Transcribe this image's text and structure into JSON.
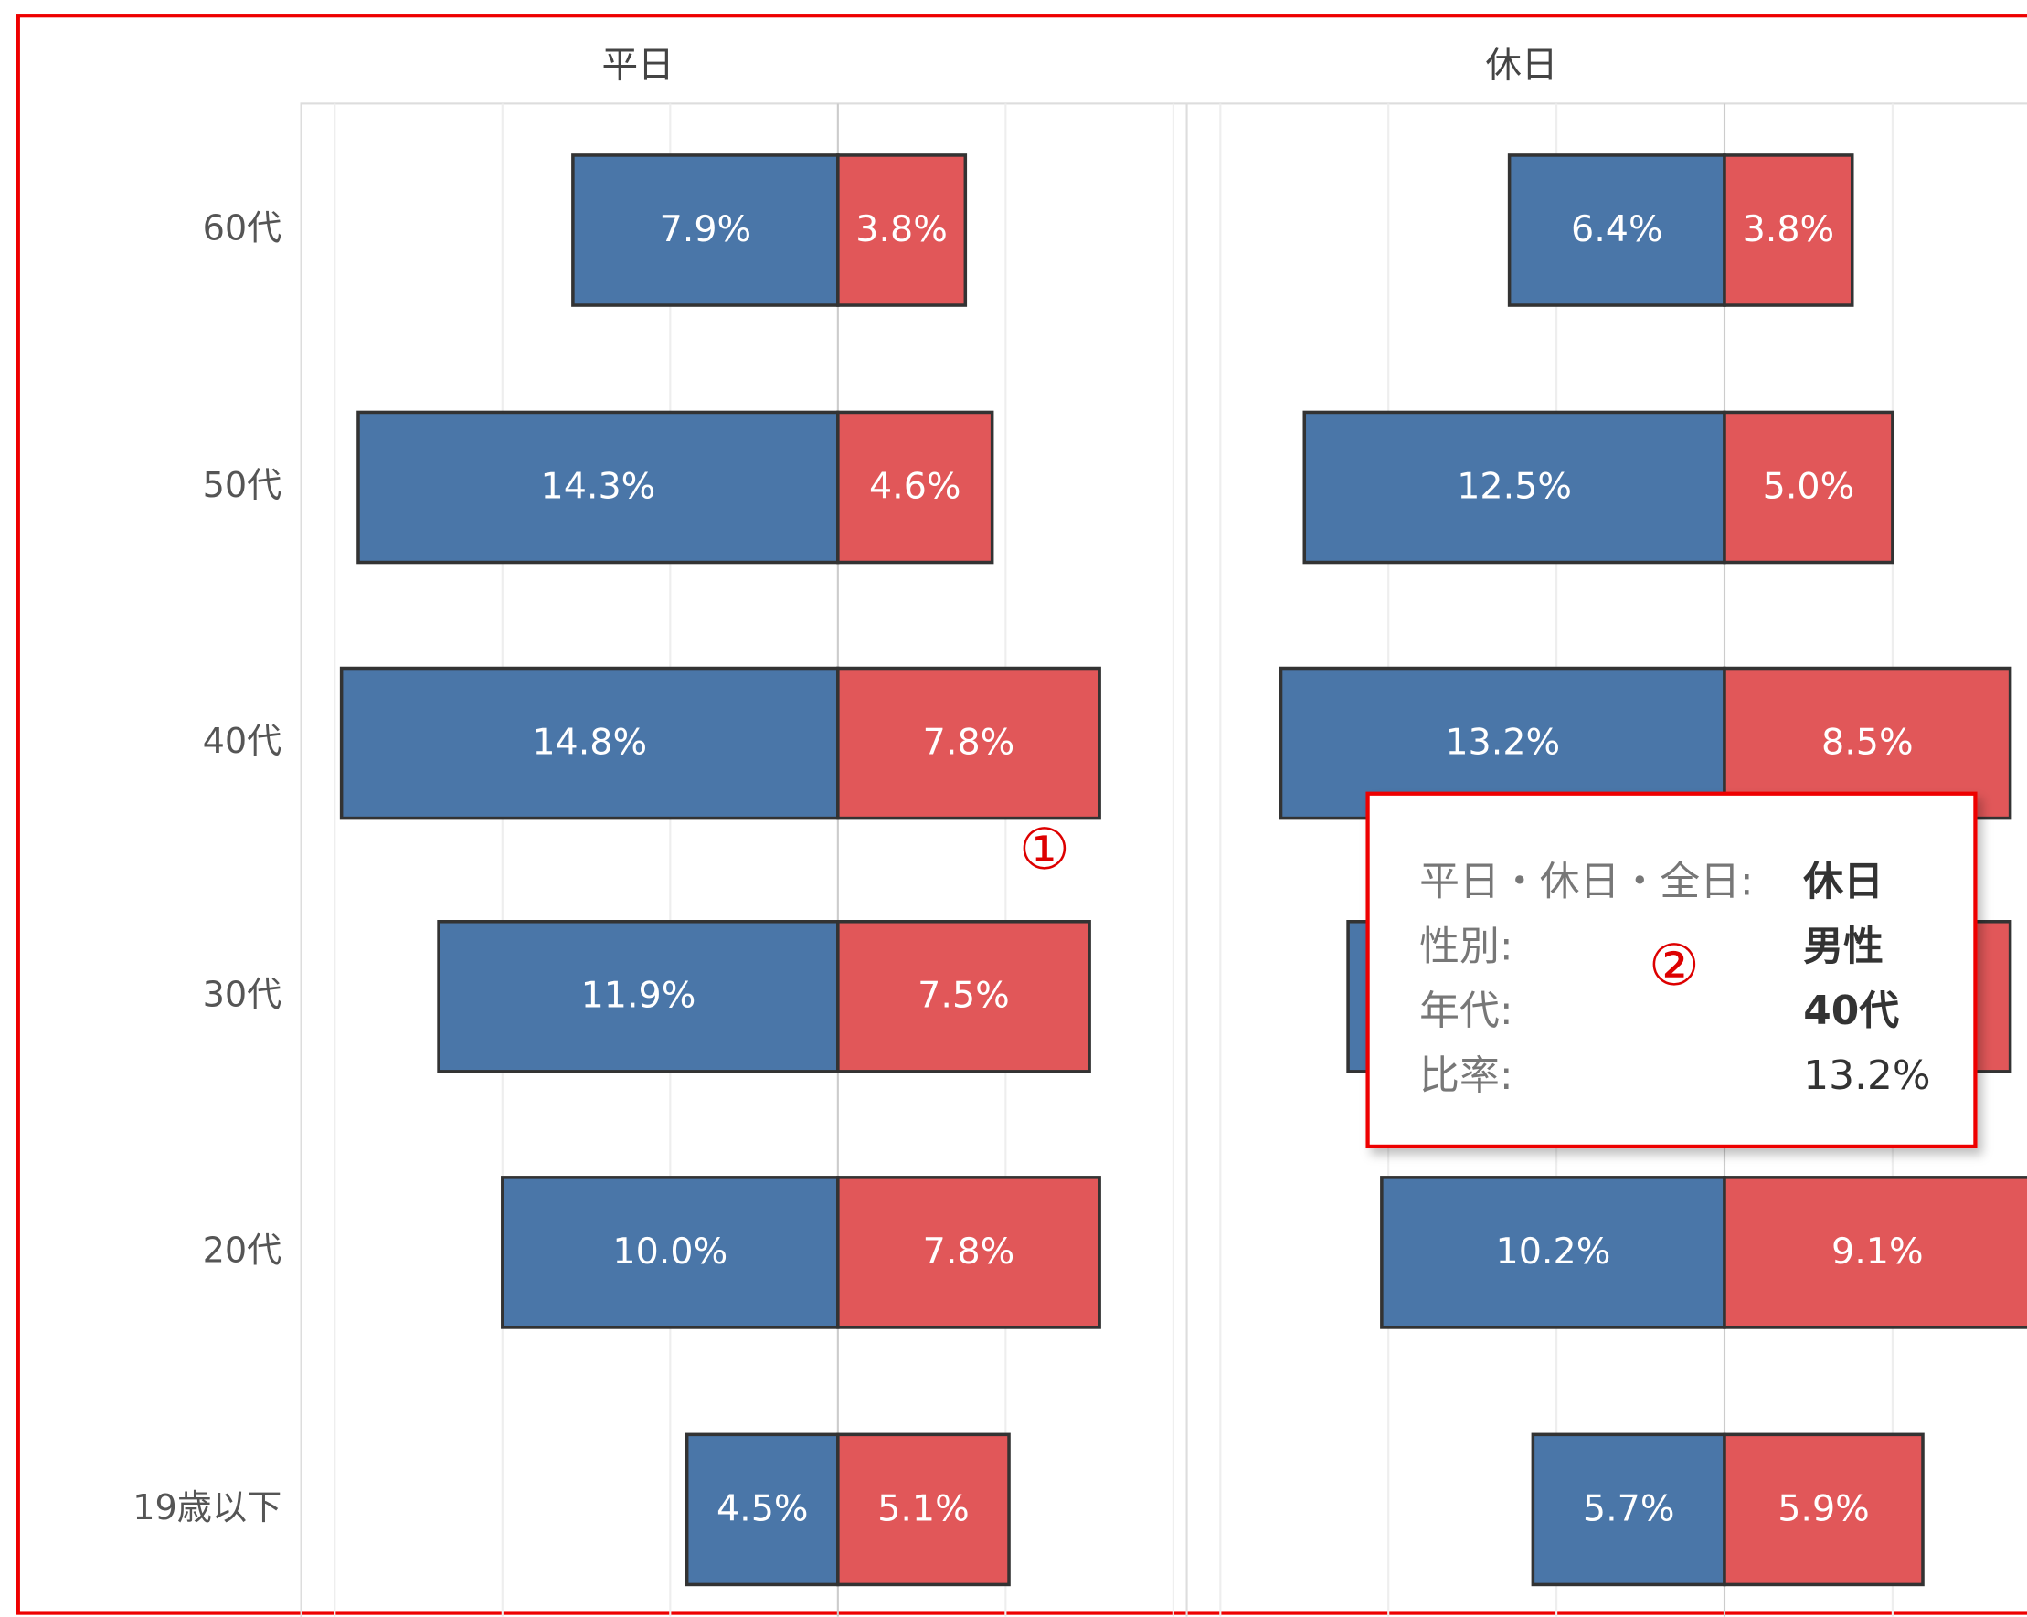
{
  "chart_data": {
    "type": "bar",
    "categories": [
      "60代",
      "50代",
      "40代",
      "30代",
      "20代",
      "19歳以下"
    ],
    "panels": [
      {
        "title": "平日",
        "xlim": [
          -16,
          10.4
        ],
        "xticks": [
          -15,
          -10,
          -5,
          0,
          5,
          10
        ],
        "grid": true,
        "series": [
          {
            "color": "#4a76a8",
            "values": [
              7.9,
              14.3,
              14.8,
              11.9,
              10.0,
              4.5
            ],
            "value_labels": [
              "7.9%",
              "14.3%",
              "14.8%",
              "11.9%",
              "10.0%",
              "4.5%"
            ]
          },
          {
            "color": "#e15759",
            "values": [
              3.8,
              4.6,
              7.8,
              7.5,
              7.8,
              5.1
            ],
            "value_labels": [
              "3.8%",
              "4.6%",
              "7.8%",
              "7.5%",
              "7.8%",
              "5.1%"
            ]
          }
        ]
      },
      {
        "title": "休日",
        "xlim": [
          -16,
          9
        ],
        "xticks": [
          -15,
          -10,
          -5,
          0,
          5
        ],
        "grid": true,
        "series": [
          {
            "color": "#4a76a8",
            "values": [
              6.4,
              12.5,
              13.2,
              11.2,
              10.2,
              5.7
            ],
            "value_labels": [
              "6.4%",
              "12.5%",
              "13.2%",
              null,
              "10.2%",
              "5.7%"
            ]
          },
          {
            "color": "#e15759",
            "values": [
              3.8,
              5.0,
              8.5,
              8.5,
              9.1,
              5.9
            ],
            "value_labels": [
              "3.8%",
              "5.0%",
              "8.5%",
              null,
              "9.1%",
              "5.9%"
            ]
          }
        ]
      }
    ],
    "tooltip": [
      {
        "label": "平日・休日・全日:",
        "value": "休日"
      },
      {
        "label": "性別:",
        "value": "男性"
      },
      {
        "label": "年代:",
        "value": "40代"
      },
      {
        "label": "比率:",
        "value": "13.2%"
      }
    ],
    "annotations": [
      "①",
      "②"
    ]
  }
}
